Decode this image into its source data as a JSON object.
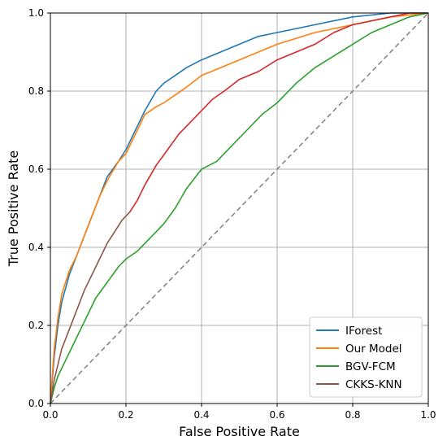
{
  "chart_data": {
    "type": "line",
    "xlabel": "False Positive Rate",
    "ylabel": "True Positive Rate",
    "xlim": [
      0,
      1
    ],
    "ylim": [
      0,
      1
    ],
    "xticks": [
      "0.0",
      "0.2",
      "0.4",
      "0.6",
      "0.8",
      "1.0"
    ],
    "yticks": [
      "0.0",
      "0.2",
      "0.4",
      "0.6",
      "0.8",
      "1.0"
    ],
    "grid": true,
    "legend_position": "lower-right",
    "reference_line": {
      "style": "dashed",
      "color": "#808080",
      "x": [
        0,
        1
      ],
      "y": [
        0,
        1
      ]
    },
    "series": [
      {
        "name": "IForest",
        "color": "#1f77b4",
        "x": [
          0,
          0.01,
          0.02,
          0.03,
          0.05,
          0.07,
          0.09,
          0.11,
          0.13,
          0.15,
          0.18,
          0.2,
          0.22,
          0.25,
          0.28,
          0.3,
          0.33,
          0.36,
          0.4,
          0.45,
          0.5,
          0.55,
          0.6,
          0.7,
          0.8,
          0.9,
          1.0
        ],
        "y": [
          0,
          0.12,
          0.2,
          0.26,
          0.33,
          0.38,
          0.43,
          0.48,
          0.53,
          0.58,
          0.62,
          0.65,
          0.69,
          0.75,
          0.8,
          0.82,
          0.84,
          0.86,
          0.88,
          0.9,
          0.92,
          0.94,
          0.95,
          0.97,
          0.99,
          1.0,
          1.0
        ]
      },
      {
        "name": "Our Model",
        "color": "#ff7f0e",
        "x": [
          0,
          0.01,
          0.02,
          0.03,
          0.05,
          0.07,
          0.09,
          0.11,
          0.13,
          0.15,
          0.18,
          0.2,
          0.22,
          0.25,
          0.28,
          0.3,
          0.33,
          0.36,
          0.4,
          0.45,
          0.5,
          0.55,
          0.6,
          0.7,
          0.8,
          0.9,
          1.0
        ],
        "y": [
          0,
          0.14,
          0.22,
          0.28,
          0.34,
          0.38,
          0.43,
          0.48,
          0.53,
          0.57,
          0.62,
          0.64,
          0.68,
          0.74,
          0.76,
          0.77,
          0.79,
          0.81,
          0.84,
          0.86,
          0.88,
          0.9,
          0.92,
          0.95,
          0.97,
          0.99,
          1.0
        ]
      },
      {
        "name": "BGV-FCM",
        "color": "#2ca02c",
        "x": [
          0,
          0.01,
          0.02,
          0.04,
          0.06,
          0.08,
          0.1,
          0.12,
          0.15,
          0.18,
          0.2,
          0.23,
          0.26,
          0.3,
          0.33,
          0.36,
          0.4,
          0.44,
          0.48,
          0.52,
          0.56,
          0.6,
          0.65,
          0.7,
          0.75,
          0.8,
          0.85,
          0.9,
          0.95,
          1.0
        ],
        "y": [
          0,
          0.04,
          0.07,
          0.11,
          0.15,
          0.19,
          0.23,
          0.27,
          0.31,
          0.35,
          0.37,
          0.39,
          0.42,
          0.46,
          0.5,
          0.55,
          0.6,
          0.62,
          0.66,
          0.7,
          0.74,
          0.77,
          0.82,
          0.86,
          0.89,
          0.92,
          0.95,
          0.97,
          0.99,
          1.0
        ]
      },
      {
        "name": "CKKS-KNN",
        "color": "#8c564b",
        "x": [
          0,
          0.01,
          0.02,
          0.03,
          0.05,
          0.07,
          0.09,
          0.11,
          0.13,
          0.15,
          0.17,
          0.19,
          0.21
        ],
        "y": [
          0,
          0.06,
          0.1,
          0.14,
          0.19,
          0.24,
          0.29,
          0.33,
          0.37,
          0.41,
          0.44,
          0.47,
          0.49
        ]
      },
      {
        "color": "#d62728",
        "x": [
          0.21,
          0.23,
          0.25,
          0.28,
          0.31,
          0.34,
          0.37,
          0.4,
          0.43,
          0.46,
          0.5,
          0.55,
          0.6,
          0.65,
          0.7,
          0.75,
          0.8,
          0.85,
          0.9,
          0.95,
          1.0
        ],
        "y": [
          0.49,
          0.52,
          0.56,
          0.61,
          0.65,
          0.69,
          0.72,
          0.75,
          0.78,
          0.8,
          0.83,
          0.85,
          0.88,
          0.9,
          0.92,
          0.95,
          0.97,
          0.98,
          0.99,
          1.0,
          1.0
        ]
      }
    ]
  }
}
